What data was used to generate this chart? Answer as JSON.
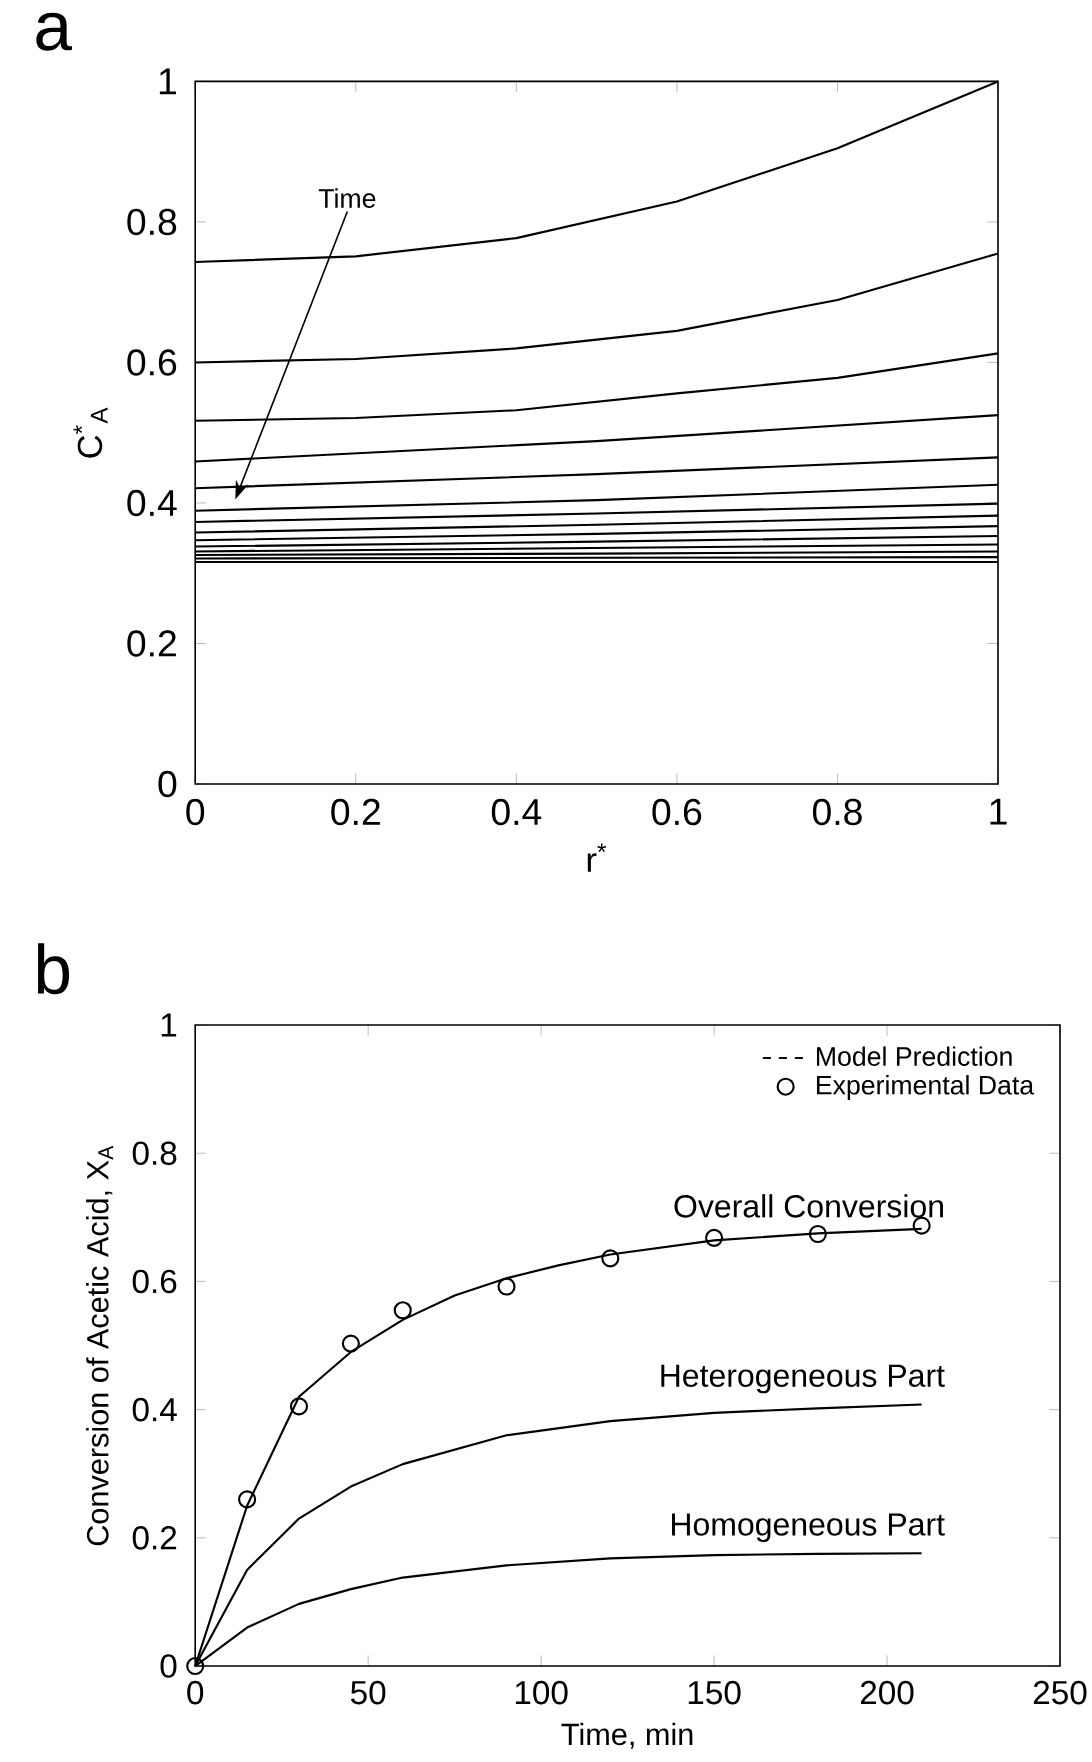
{
  "chart_data": [
    {
      "type": "line",
      "title": "a",
      "xlabel": "r$^{*}$",
      "ylabel": "C$^{*}$$_{A}$",
      "xlim": [
        0,
        1
      ],
      "ylim": [
        0,
        1
      ],
      "xticks": [
        0,
        0.2,
        0.4,
        0.6,
        0.8,
        1
      ],
      "yticks": [
        0,
        0.2,
        0.4,
        0.6,
        0.8,
        1
      ],
      "annotations": [
        {
          "text": "Time",
          "x": 0.05,
          "y": 0.405
        }
      ],
      "series": [
        {
          "color": "#000000",
          "x": [
            0,
            0.2,
            0.4,
            0.6,
            0.8,
            1
          ],
          "values": [
            0.743,
            0.751,
            0.777,
            0.829,
            0.905,
            1.0
          ]
        },
        {
          "color": "#000000",
          "x": [
            0,
            0.2,
            0.4,
            0.6,
            0.8,
            1
          ],
          "values": [
            0.6,
            0.605,
            0.62,
            0.645,
            0.689,
            0.755
          ]
        },
        {
          "color": "#000000",
          "x": [
            0,
            0.2,
            0.4,
            0.6,
            0.8,
            1
          ],
          "values": [
            0.517,
            0.521,
            0.532,
            0.556,
            0.578,
            0.613
          ]
        },
        {
          "color": "#000000",
          "x": [
            0,
            0.5,
            1
          ],
          "values": [
            0.459,
            0.488,
            0.525
          ]
        },
        {
          "color": "#000000",
          "x": [
            0,
            0.5,
            1
          ],
          "values": [
            0.421,
            0.441,
            0.465
          ]
        },
        {
          "color": "#000000",
          "x": [
            0,
            0.5,
            1
          ],
          "values": [
            0.389,
            0.404,
            0.426
          ]
        },
        {
          "color": "#000000",
          "x": [
            0,
            0.5,
            1
          ],
          "values": [
            0.373,
            0.385,
            0.399
          ]
        },
        {
          "color": "#000000",
          "x": [
            0,
            0.5,
            1
          ],
          "values": [
            0.358,
            0.369,
            0.382
          ]
        },
        {
          "color": "#000000",
          "x": [
            0,
            0.5,
            1
          ],
          "values": [
            0.347,
            0.356,
            0.367
          ]
        },
        {
          "color": "#000000",
          "x": [
            0,
            0.5,
            1
          ],
          "values": [
            0.338,
            0.345,
            0.353
          ]
        },
        {
          "color": "#000000",
          "x": [
            0,
            0.5,
            1
          ],
          "values": [
            0.331,
            0.336,
            0.341
          ]
        },
        {
          "color": "#000000",
          "x": [
            0,
            0.5,
            1
          ],
          "values": [
            0.326,
            0.328,
            0.331
          ]
        },
        {
          "color": "#000000",
          "x": [
            0,
            0.5,
            1
          ],
          "values": [
            0.321,
            0.322,
            0.323
          ]
        },
        {
          "color": "#000000",
          "x": [
            0,
            0.5,
            1
          ],
          "values": [
            0.316,
            0.316,
            0.316
          ]
        }
      ]
    },
    {
      "type": "line",
      "title": "b",
      "xlabel": "Time, min",
      "ylabel": "Conversion of Acetic Acid, X$_{A}$",
      "xlim": [
        0,
        250
      ],
      "ylim": [
        0,
        1
      ],
      "xticks": [
        0,
        50,
        100,
        150,
        200,
        250
      ],
      "yticks": [
        0,
        0.2,
        0.4,
        0.6,
        0.8,
        1
      ],
      "legend": "top right",
      "annotations": [
        "Model Prediction"
      ],
      "series": [
        {
          "name": "Overall Conversion",
          "color": "#000000",
          "x": [
            0,
            15,
            30,
            45,
            60,
            75,
            90,
            105,
            120,
            150,
            180,
            210
          ],
          "values": [
            0,
            0.25,
            0.42,
            0.49,
            0.54,
            0.578,
            0.605,
            0.625,
            0.642,
            0.664,
            0.675,
            0.682
          ]
        },
        {
          "name": "Heterogeneous Part",
          "color": "#000000",
          "x": [
            0,
            15,
            30,
            45,
            60,
            90,
            120,
            150,
            180,
            210
          ],
          "values": [
            0,
            0.15,
            0.23,
            0.28,
            0.315,
            0.36,
            0.382,
            0.395,
            0.402,
            0.408
          ]
        },
        {
          "name": "Homogeneous Part",
          "color": "#000000",
          "x": [
            0,
            15,
            30,
            45,
            60,
            90,
            120,
            150,
            180,
            210
          ],
          "values": [
            0,
            0.06,
            0.097,
            0.12,
            0.138,
            0.157,
            0.168,
            0.173,
            0.175,
            0.176
          ]
        },
        {
          "name": "Experimental Data",
          "type": "scatter",
          "marker": "circle",
          "color": "#000000",
          "x": [
            0,
            15,
            30,
            45,
            60,
            90,
            120,
            150,
            180,
            210
          ],
          "values": [
            0,
            0.26,
            0.405,
            0.503,
            0.555,
            0.592,
            0.636,
            0.668,
            0.674,
            0.687
          ]
        }
      ]
    }
  ]
}
